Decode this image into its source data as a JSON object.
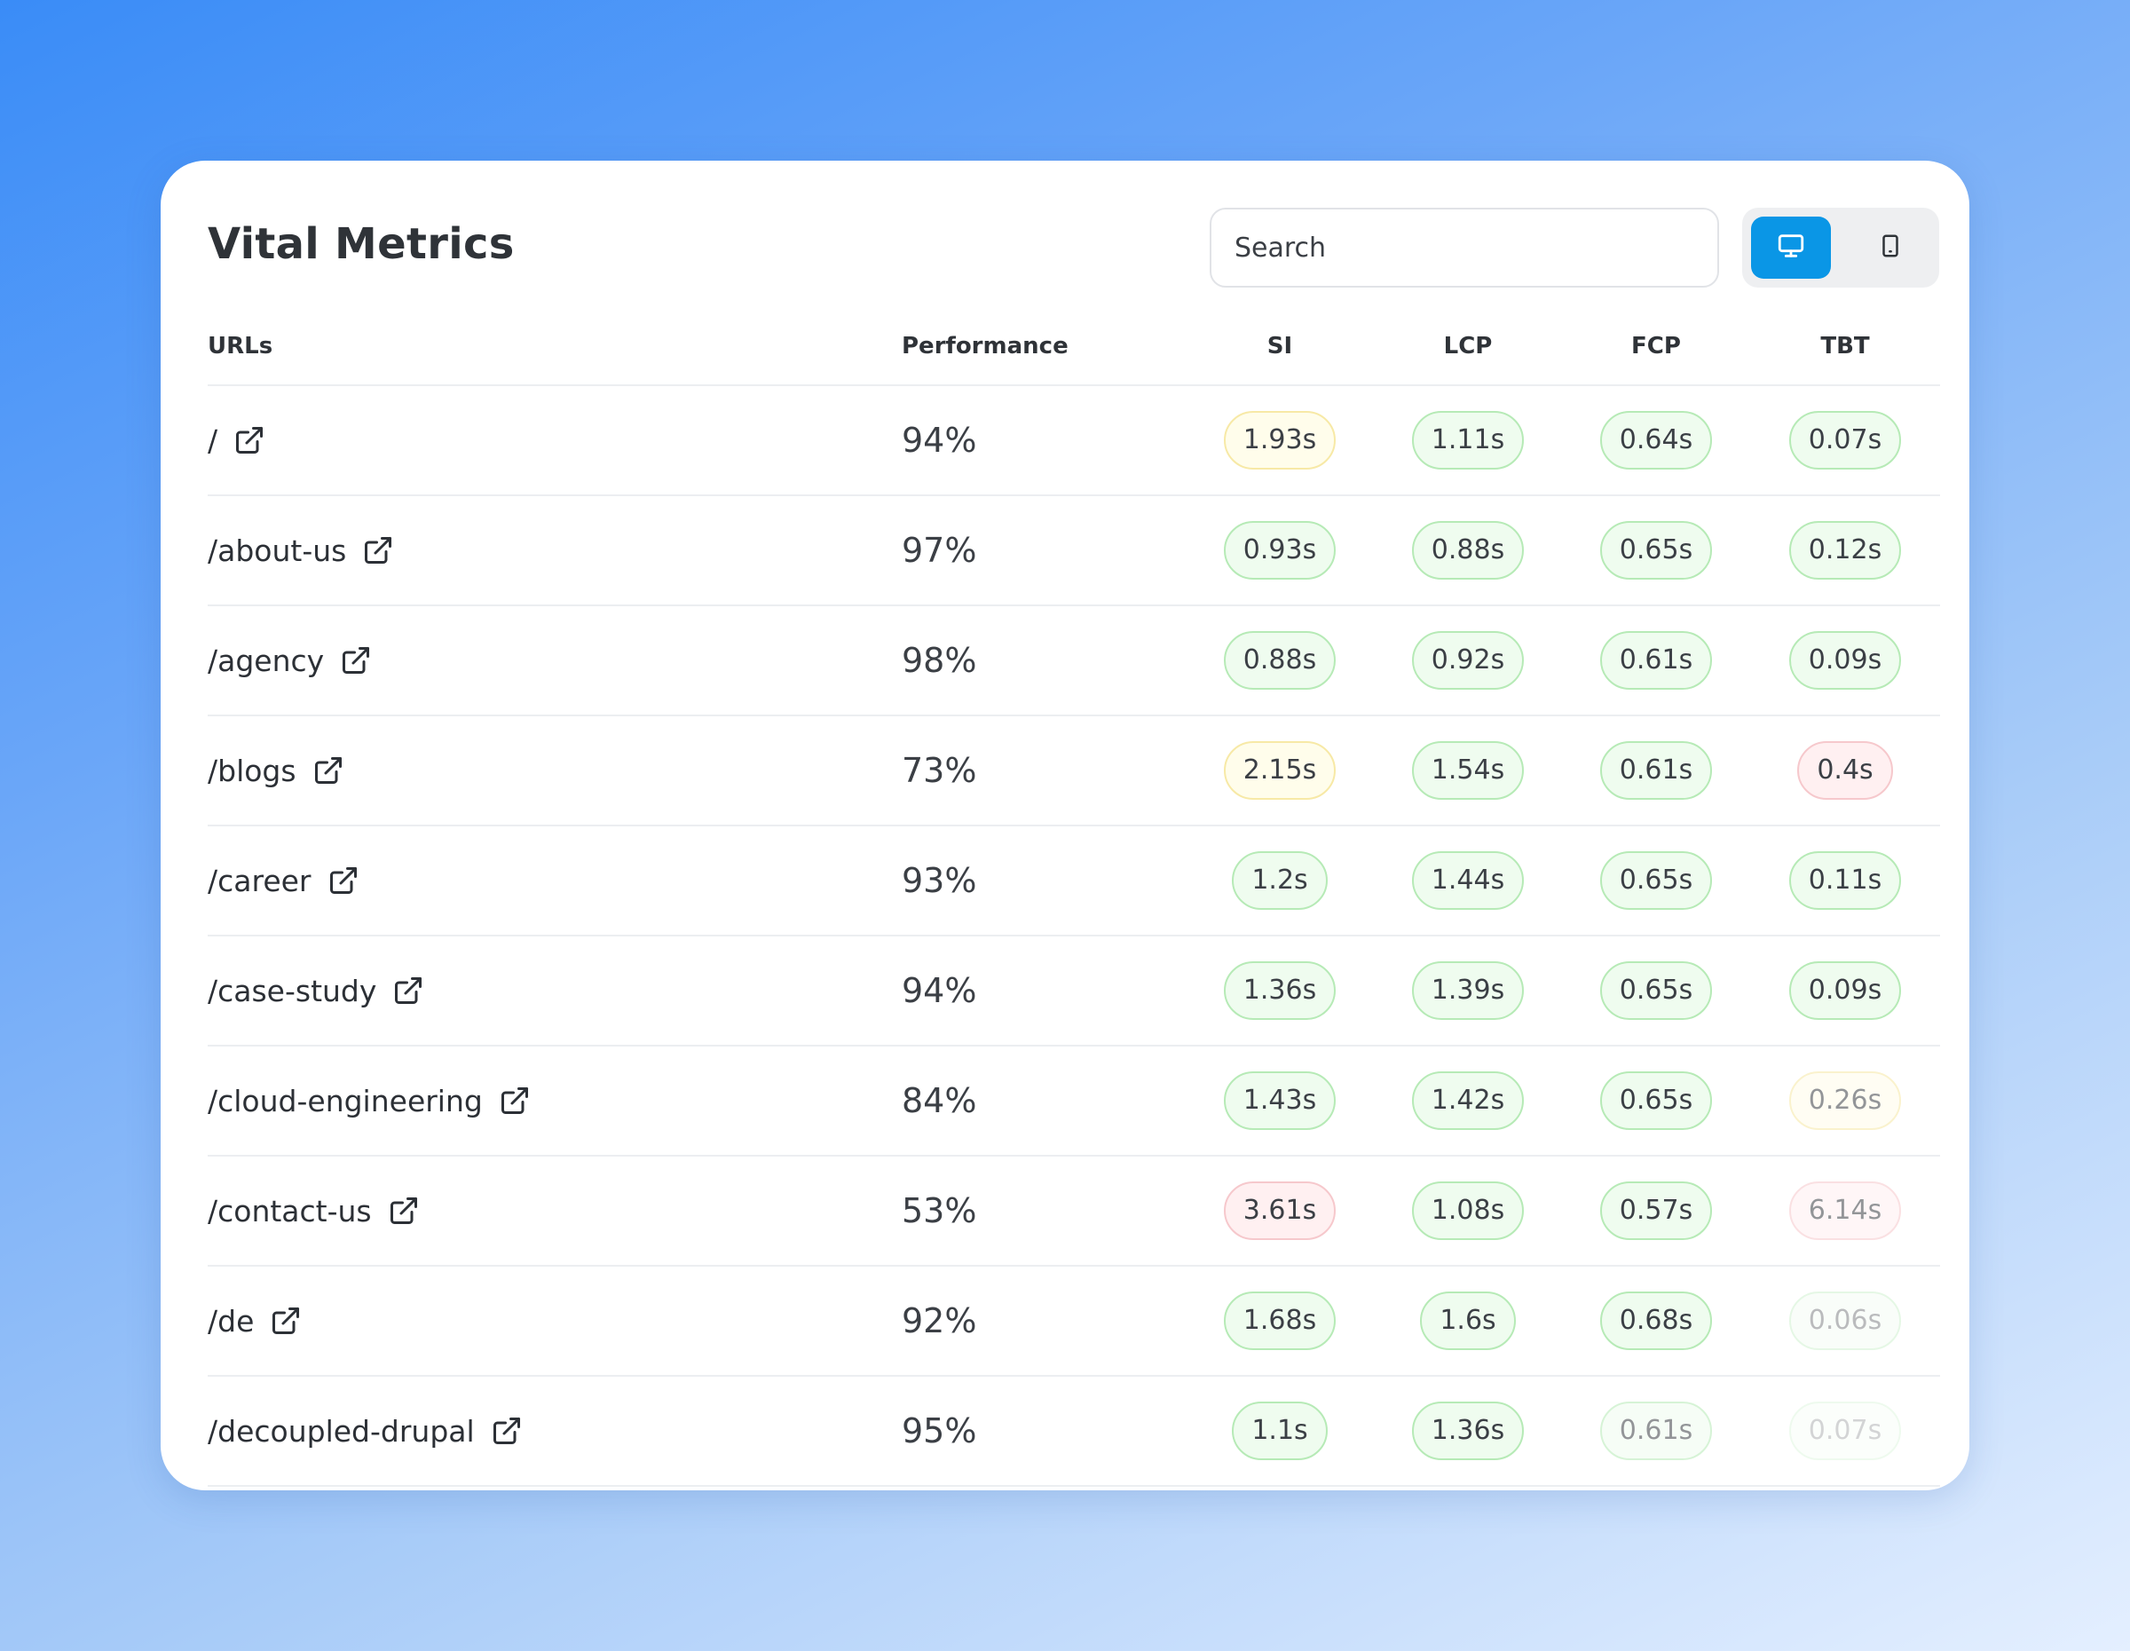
{
  "header": {
    "title": "Vital Metrics"
  },
  "search": {
    "placeholder": "Search"
  },
  "device_toggle": {
    "options": [
      "desktop-icon",
      "mobile-icon"
    ],
    "selected": "desktop",
    "accent": "#0a96e6"
  },
  "status_colors": {
    "good": {
      "bg": "#effcef",
      "border": "#b6eab6"
    },
    "warn": {
      "bg": "#fffdeb",
      "border": "#f7e9a6"
    },
    "poor": {
      "bg": "#fff0f1",
      "border": "#f6c8cc"
    }
  },
  "table": {
    "headers": {
      "url": "URLs",
      "performance": "Performance",
      "si": "SI",
      "lcp": "LCP",
      "fcp": "FCP",
      "tbt": "TBT"
    },
    "rows": [
      {
        "url": "/",
        "performance": "94%",
        "si": {
          "value": "1.93s",
          "status": "warn"
        },
        "lcp": {
          "value": "1.11s",
          "status": "good"
        },
        "fcp": {
          "value": "0.64s",
          "status": "good"
        },
        "tbt": {
          "value": "0.07s",
          "status": "good"
        }
      },
      {
        "url": "/about-us",
        "performance": "97%",
        "si": {
          "value": "0.93s",
          "status": "good"
        },
        "lcp": {
          "value": "0.88s",
          "status": "good"
        },
        "fcp": {
          "value": "0.65s",
          "status": "good"
        },
        "tbt": {
          "value": "0.12s",
          "status": "good"
        }
      },
      {
        "url": "/agency",
        "performance": "98%",
        "si": {
          "value": "0.88s",
          "status": "good"
        },
        "lcp": {
          "value": "0.92s",
          "status": "good"
        },
        "fcp": {
          "value": "0.61s",
          "status": "good"
        },
        "tbt": {
          "value": "0.09s",
          "status": "good"
        }
      },
      {
        "url": "/blogs",
        "performance": "73%",
        "si": {
          "value": "2.15s",
          "status": "warn"
        },
        "lcp": {
          "value": "1.54s",
          "status": "good"
        },
        "fcp": {
          "value": "0.61s",
          "status": "good"
        },
        "tbt": {
          "value": "0.4s",
          "status": "poor"
        }
      },
      {
        "url": "/career",
        "performance": "93%",
        "si": {
          "value": "1.2s",
          "status": "good"
        },
        "lcp": {
          "value": "1.44s",
          "status": "good"
        },
        "fcp": {
          "value": "0.65s",
          "status": "good"
        },
        "tbt": {
          "value": "0.11s",
          "status": "good"
        }
      },
      {
        "url": "/case-study",
        "performance": "94%",
        "si": {
          "value": "1.36s",
          "status": "good"
        },
        "lcp": {
          "value": "1.39s",
          "status": "good"
        },
        "fcp": {
          "value": "0.65s",
          "status": "good"
        },
        "tbt": {
          "value": "0.09s",
          "status": "good"
        }
      },
      {
        "url": "/cloud-engineering",
        "performance": "84%",
        "si": {
          "value": "1.43s",
          "status": "good"
        },
        "lcp": {
          "value": "1.42s",
          "status": "good"
        },
        "fcp": {
          "value": "0.65s",
          "status": "good"
        },
        "tbt": {
          "value": "0.26s",
          "status": "warn",
          "faded": "faded"
        }
      },
      {
        "url": "/contact-us",
        "performance": "53%",
        "si": {
          "value": "3.61s",
          "status": "poor"
        },
        "lcp": {
          "value": "1.08s",
          "status": "good"
        },
        "fcp": {
          "value": "0.57s",
          "status": "good"
        },
        "tbt": {
          "value": "6.14s",
          "status": "poor",
          "faded": "faded"
        }
      },
      {
        "url": "/de",
        "performance": "92%",
        "si": {
          "value": "1.68s",
          "status": "good"
        },
        "lcp": {
          "value": "1.6s",
          "status": "good"
        },
        "fcp": {
          "value": "0.68s",
          "status": "good"
        },
        "tbt": {
          "value": "0.06s",
          "status": "good",
          "faded": "faded2"
        }
      },
      {
        "url": "/decoupled-drupal",
        "performance": "95%",
        "si": {
          "value": "1.1s",
          "status": "good"
        },
        "lcp": {
          "value": "1.36s",
          "status": "good"
        },
        "fcp": {
          "value": "0.61s",
          "status": "good",
          "faded": "faded"
        },
        "tbt": {
          "value": "0.07s",
          "status": "good",
          "faded": "faded3"
        }
      }
    ]
  }
}
